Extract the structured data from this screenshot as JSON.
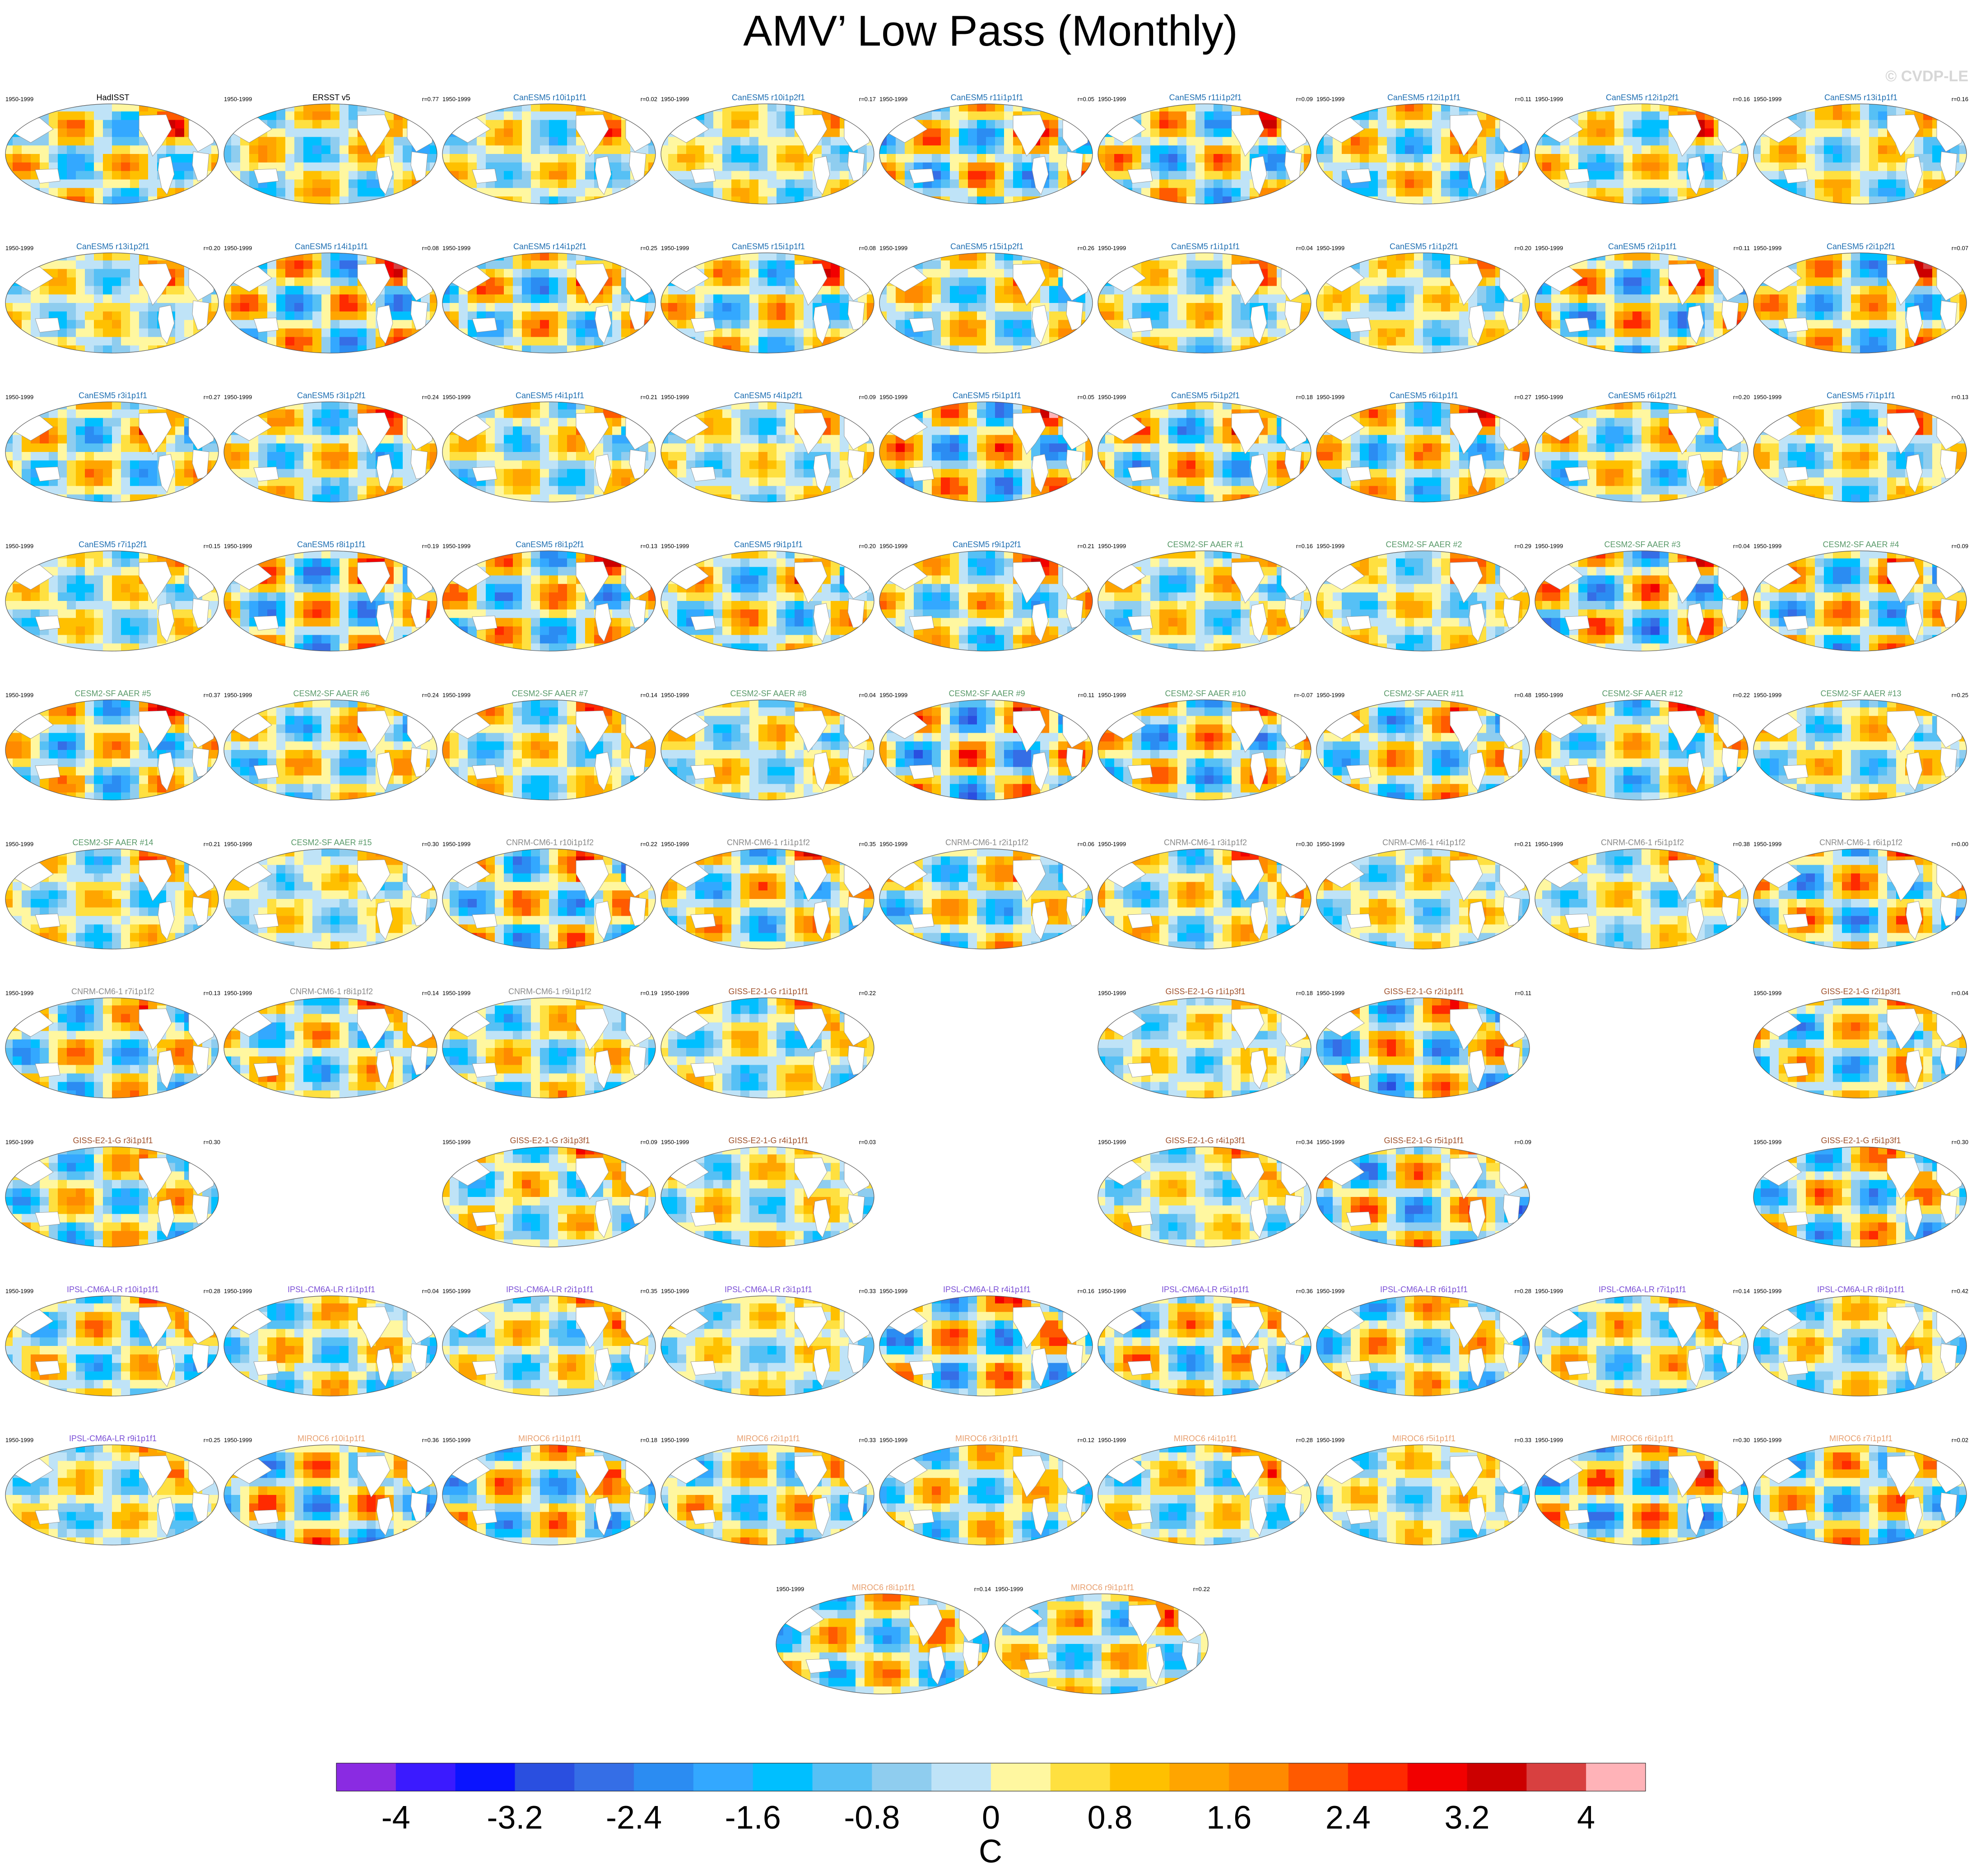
{
  "figure": {
    "title": "AMV’ Low Pass (Monthly)",
    "watermark": "© CVDP-LE"
  },
  "chart_data": {
    "type": "heatmap",
    "title": "AMV’ Low Pass (Monthly)",
    "period": "1950-1999",
    "unit": "C",
    "colorbar": {
      "ticks": [
        "-4",
        "-3.2",
        "-2.4",
        "-1.6",
        "-0.8",
        "0",
        "0.8",
        "1.6",
        "2.4",
        "3.2",
        "4"
      ],
      "range": [
        -4.4,
        4.4
      ],
      "colors": [
        "#8a2be2",
        "#3b1aff",
        "#0a14ff",
        "#2a4fe0",
        "#356ee6",
        "#2b8cf2",
        "#33a8ff",
        "#00bfff",
        "#56c0f5",
        "#8fcdef",
        "#bfe3f7",
        "#fff7a0",
        "#ffe040",
        "#ffc000",
        "#ffa500",
        "#ff8a00",
        "#ff5a00",
        "#ff2a00",
        "#f20000",
        "#cc0000",
        "#d84040",
        "#ffb3b8"
      ]
    },
    "panels": [
      {
        "title": "HadISST",
        "r": "",
        "group": "obs",
        "pattern": 0
      },
      {
        "title": "ERSST v5",
        "r": "r=0.77",
        "group": "obs",
        "pattern": 1
      },
      {
        "title": "CanESM5 r10i1p1f1",
        "r": "r=0.02",
        "group": "CanESM5",
        "pattern": 2
      },
      {
        "title": "CanESM5 r10i1p2f1",
        "r": "r=0.17",
        "group": "CanESM5",
        "pattern": 3
      },
      {
        "title": "CanESM5 r11i1p1f1",
        "r": "r=0.05",
        "group": "CanESM5",
        "pattern": 4
      },
      {
        "title": "CanESM5 r11i1p2f1",
        "r": "r=0.09",
        "group": "CanESM5",
        "pattern": 5
      },
      {
        "title": "CanESM5 r12i1p1f1",
        "r": "r=0.11",
        "group": "CanESM5",
        "pattern": 6
      },
      {
        "title": "CanESM5 r12i1p2f1",
        "r": "r=0.16",
        "group": "CanESM5",
        "pattern": 7
      },
      {
        "title": "CanESM5 r13i1p1f1",
        "r": "r=0.16",
        "group": "CanESM5",
        "pattern": 8
      },
      {
        "title": "CanESM5 r13i1p2f1",
        "r": "r=0.20",
        "group": "CanESM5",
        "pattern": 9
      },
      {
        "title": "CanESM5 r14i1p1f1",
        "r": "r=0.08",
        "group": "CanESM5",
        "pattern": 10
      },
      {
        "title": "CanESM5 r14i1p2f1",
        "r": "r=0.25",
        "group": "CanESM5",
        "pattern": 11
      },
      {
        "title": "CanESM5 r15i1p1f1",
        "r": "r=0.08",
        "group": "CanESM5",
        "pattern": 12
      },
      {
        "title": "CanESM5 r15i1p2f1",
        "r": "r=0.26",
        "group": "CanESM5",
        "pattern": 13
      },
      {
        "title": "CanESM5 r1i1p1f1",
        "r": "r=0.04",
        "group": "CanESM5",
        "pattern": 14
      },
      {
        "title": "CanESM5 r1i1p2f1",
        "r": "r=0.20",
        "group": "CanESM5",
        "pattern": 15
      },
      {
        "title": "CanESM5 r2i1p1f1",
        "r": "r=0.11",
        "group": "CanESM5",
        "pattern": 16
      },
      {
        "title": "CanESM5 r2i1p2f1",
        "r": "r=0.07",
        "group": "CanESM5",
        "pattern": 17
      },
      {
        "title": "CanESM5 r3i1p1f1",
        "r": "r=0.27",
        "group": "CanESM5",
        "pattern": 18
      },
      {
        "title": "CanESM5 r3i1p2f1",
        "r": "r=0.24",
        "group": "CanESM5",
        "pattern": 19
      },
      {
        "title": "CanESM5 r4i1p1f1",
        "r": "r=0.21",
        "group": "CanESM5",
        "pattern": 20
      },
      {
        "title": "CanESM5 r4i1p2f1",
        "r": "r=0.09",
        "group": "CanESM5",
        "pattern": 21
      },
      {
        "title": "CanESM5 r5i1p1f1",
        "r": "r=0.05",
        "group": "CanESM5",
        "pattern": 22
      },
      {
        "title": "CanESM5 r5i1p2f1",
        "r": "r=0.18",
        "group": "CanESM5",
        "pattern": 23
      },
      {
        "title": "CanESM5 r6i1p1f1",
        "r": "r=0.27",
        "group": "CanESM5",
        "pattern": 24
      },
      {
        "title": "CanESM5 r6i1p2f1",
        "r": "r=0.20",
        "group": "CanESM5",
        "pattern": 25
      },
      {
        "title": "CanESM5 r7i1p1f1",
        "r": "r=0.13",
        "group": "CanESM5",
        "pattern": 26
      },
      {
        "title": "CanESM5 r7i1p2f1",
        "r": "r=0.15",
        "group": "CanESM5",
        "pattern": 27
      },
      {
        "title": "CanESM5 r8i1p1f1",
        "r": "r=0.19",
        "group": "CanESM5",
        "pattern": 28
      },
      {
        "title": "CanESM5 r8i1p2f1",
        "r": "r=0.13",
        "group": "CanESM5",
        "pattern": 29
      },
      {
        "title": "CanESM5 r9i1p1f1",
        "r": "r=0.20",
        "group": "CanESM5",
        "pattern": 30
      },
      {
        "title": "CanESM5 r9i1p2f1",
        "r": "r=0.21",
        "group": "CanESM5",
        "pattern": 31
      },
      {
        "title": "CESM2-SF AAER #1",
        "r": "r=0.16",
        "group": "CESM2",
        "pattern": 32
      },
      {
        "title": "CESM2-SF AAER #2",
        "r": "r=0.29",
        "group": "CESM2",
        "pattern": 33
      },
      {
        "title": "CESM2-SF AAER #3",
        "r": "r=0.04",
        "group": "CESM2",
        "pattern": 34
      },
      {
        "title": "CESM2-SF AAER #4",
        "r": "r=0.09",
        "group": "CESM2",
        "pattern": 35
      },
      {
        "title": "CESM2-SF AAER #5",
        "r": "r=0.37",
        "group": "CESM2",
        "pattern": 36
      },
      {
        "title": "CESM2-SF AAER #6",
        "r": "r=0.24",
        "group": "CESM2",
        "pattern": 37
      },
      {
        "title": "CESM2-SF AAER #7",
        "r": "r=0.14",
        "group": "CESM2",
        "pattern": 38
      },
      {
        "title": "CESM2-SF AAER #8",
        "r": "r=0.04",
        "group": "CESM2",
        "pattern": 39
      },
      {
        "title": "CESM2-SF AAER #9",
        "r": "r=0.11",
        "group": "CESM2",
        "pattern": 40
      },
      {
        "title": "CESM2-SF AAER #10",
        "r": "r=-0.07",
        "group": "CESM2",
        "pattern": 41
      },
      {
        "title": "CESM2-SF AAER #11",
        "r": "r=0.48",
        "group": "CESM2",
        "pattern": 42
      },
      {
        "title": "CESM2-SF AAER #12",
        "r": "r=0.22",
        "group": "CESM2",
        "pattern": 43
      },
      {
        "title": "CESM2-SF AAER #13",
        "r": "r=0.25",
        "group": "CESM2",
        "pattern": 44
      },
      {
        "title": "CESM2-SF AAER #14",
        "r": "r=0.21",
        "group": "CESM2",
        "pattern": 45
      },
      {
        "title": "CESM2-SF AAER #15",
        "r": "r=0.30",
        "group": "CESM2",
        "pattern": 46
      },
      {
        "title": "CNRM-CM6-1 r10i1p1f2",
        "r": "r=0.22",
        "group": "CNRM",
        "pattern": 47
      },
      {
        "title": "CNRM-CM6-1 r1i1p1f2",
        "r": "r=0.35",
        "group": "CNRM",
        "pattern": 48
      },
      {
        "title": "CNRM-CM6-1 r2i1p1f2",
        "r": "r=0.06",
        "group": "CNRM",
        "pattern": 49
      },
      {
        "title": "CNRM-CM6-1 r3i1p1f2",
        "r": "r=0.30",
        "group": "CNRM",
        "pattern": 50
      },
      {
        "title": "CNRM-CM6-1 r4i1p1f2",
        "r": "r=0.21",
        "group": "CNRM",
        "pattern": 51
      },
      {
        "title": "CNRM-CM6-1 r5i1p1f2",
        "r": "r=0.38",
        "group": "CNRM",
        "pattern": 52
      },
      {
        "title": "CNRM-CM6-1 r6i1p1f2",
        "r": "r=0.00",
        "group": "CNRM",
        "pattern": 53
      },
      {
        "title": "CNRM-CM6-1 r7i1p1f2",
        "r": "r=0.13",
        "group": "CNRM",
        "pattern": 54
      },
      {
        "title": "CNRM-CM6-1 r8i1p1f2",
        "r": "r=0.14",
        "group": "CNRM",
        "pattern": 55
      },
      {
        "title": "CNRM-CM6-1 r9i1p1f2",
        "r": "r=0.19",
        "group": "CNRM",
        "pattern": 56
      },
      {
        "title": "GISS-E2-1-G r1i1p1f1",
        "r": "r=0.22",
        "group": "GISS",
        "pattern": 57
      },
      {
        "title": "GISS-E2-1-G r1i1p3f1",
        "r": "r=0.18",
        "group": "GISS",
        "pattern": 58
      },
      {
        "title": "GISS-E2-1-G r2i1p1f1",
        "r": "r=0.11",
        "group": "GISS",
        "pattern": 59
      },
      {
        "title": "GISS-E2-1-G r2i1p3f1",
        "r": "r=0.04",
        "group": "GISS",
        "pattern": 60
      },
      {
        "title": "GISS-E2-1-G r3i1p1f1",
        "r": "r=0.30",
        "group": "GISS",
        "pattern": 61
      },
      {
        "title": "GISS-E2-1-G r3i1p3f1",
        "r": "r=0.09",
        "group": "GISS",
        "pattern": 62
      },
      {
        "title": "GISS-E2-1-G r4i1p1f1",
        "r": "r=0.03",
        "group": "GISS",
        "pattern": 63
      },
      {
        "title": "GISS-E2-1-G r4i1p3f1",
        "r": "r=0.34",
        "group": "GISS",
        "pattern": 64
      },
      {
        "title": "GISS-E2-1-G r5i1p1f1",
        "r": "r=0.09",
        "group": "GISS",
        "pattern": 65
      },
      {
        "title": "GISS-E2-1-G r5i1p3f1",
        "r": "r=0.30",
        "group": "GISS",
        "pattern": 66
      },
      {
        "title": "IPSL-CM6A-LR r10i1p1f1",
        "r": "r=0.28",
        "group": "IPSL",
        "pattern": 67
      },
      {
        "title": "IPSL-CM6A-LR r1i1p1f1",
        "r": "r=0.04",
        "group": "IPSL",
        "pattern": 68
      },
      {
        "title": "IPSL-CM6A-LR r2i1p1f1",
        "r": "r=0.35",
        "group": "IPSL",
        "pattern": 69
      },
      {
        "title": "IPSL-CM6A-LR r3i1p1f1",
        "r": "r=0.33",
        "group": "IPSL",
        "pattern": 70
      },
      {
        "title": "IPSL-CM6A-LR r4i1p1f1",
        "r": "r=0.16",
        "group": "IPSL",
        "pattern": 71
      },
      {
        "title": "IPSL-CM6A-LR r5i1p1f1",
        "r": "r=0.36",
        "group": "IPSL",
        "pattern": 72
      },
      {
        "title": "IPSL-CM6A-LR r6i1p1f1",
        "r": "r=0.28",
        "group": "IPSL",
        "pattern": 73
      },
      {
        "title": "IPSL-CM6A-LR r7i1p1f1",
        "r": "r=0.14",
        "group": "IPSL",
        "pattern": 74
      },
      {
        "title": "IPSL-CM6A-LR r8i1p1f1",
        "r": "r=0.42",
        "group": "IPSL",
        "pattern": 75
      },
      {
        "title": "IPSL-CM6A-LR r9i1p1f1",
        "r": "r=0.25",
        "group": "IPSL",
        "pattern": 76
      },
      {
        "title": "MIROC6 r10i1p1f1",
        "r": "r=0.36",
        "group": "MIROC6",
        "pattern": 77
      },
      {
        "title": "MIROC6 r1i1p1f1",
        "r": "r=0.18",
        "group": "MIROC6",
        "pattern": 78
      },
      {
        "title": "MIROC6 r2i1p1f1",
        "r": "r=0.33",
        "group": "MIROC6",
        "pattern": 79
      },
      {
        "title": "MIROC6 r3i1p1f1",
        "r": "r=0.12",
        "group": "MIROC6",
        "pattern": 80
      },
      {
        "title": "MIROC6 r4i1p1f1",
        "r": "r=0.28",
        "group": "MIROC6",
        "pattern": 81
      },
      {
        "title": "MIROC6 r5i1p1f1",
        "r": "r=0.33",
        "group": "MIROC6",
        "pattern": 82
      },
      {
        "title": "MIROC6 r6i1p1f1",
        "r": "r=0.30",
        "group": "MIROC6",
        "pattern": 83
      },
      {
        "title": "MIROC6 r7i1p1f1",
        "r": "r=0.02",
        "group": "MIROC6",
        "pattern": 84
      },
      {
        "title": "MIROC6 r8i1p1f1",
        "r": "r=0.14",
        "group": "MIROC6",
        "pattern": 85
      },
      {
        "title": "MIROC6 r9i1p1f1",
        "r": "r=0.22",
        "group": "MIROC6",
        "pattern": 86
      }
    ],
    "group_colors": {
      "obs": "#000000",
      "CanESM5": "#1f6fb2",
      "CESM2": "#5a9a6a",
      "CNRM": "#8a8a8a",
      "GISS": "#a0522d",
      "IPSL": "#7b4fd6",
      "MIROC6": "#e8a070"
    }
  }
}
